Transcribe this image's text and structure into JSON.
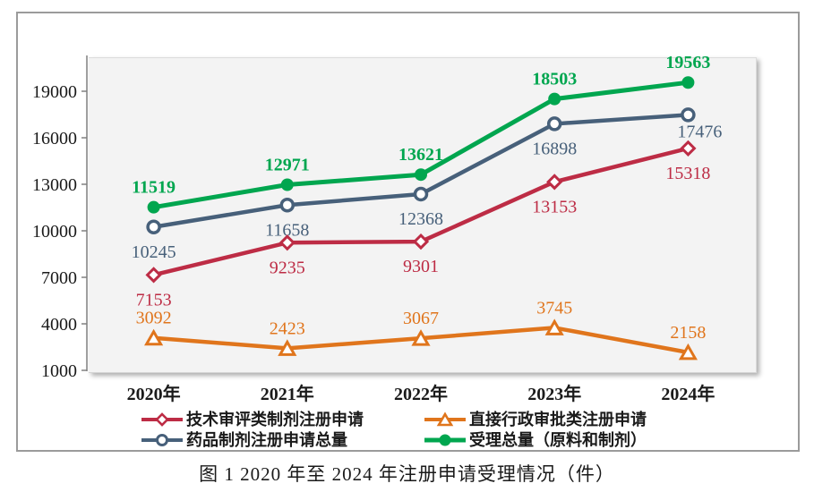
{
  "figure": {
    "caption": "图 1  2020 年至 2024 年注册申请受理情况（件）"
  },
  "chart_data": {
    "type": "line",
    "title": "",
    "xlabel": "",
    "ylabel": "",
    "categories": [
      "2020年",
      "2021年",
      "2022年",
      "2023年",
      "2024年"
    ],
    "series": [
      {
        "key": "tech-review-preparation",
        "name": "技术审评类制剂注册申请",
        "color": "#BD2C45",
        "marker": "diamond-open",
        "values": [
          7153,
          9235,
          9301,
          13153,
          15318
        ],
        "label_side": "below",
        "label_bold": false
      },
      {
        "key": "drug-preparation-total",
        "name": "药品制剂注册申请总量",
        "color": "#47607A",
        "marker": "circle-open",
        "values": [
          10245,
          11658,
          12368,
          16898,
          17476
        ],
        "label_side": "below",
        "label_bold": false,
        "label_adjust": {
          "4": [
            13,
            -9
          ]
        }
      },
      {
        "key": "direct-admin-approval",
        "name": "直接行政审批类注册申请",
        "color": "#E0751C",
        "marker": "triangle-open",
        "values": [
          3092,
          2423,
          3067,
          3745,
          2158
        ],
        "label_side": "above",
        "label_bold": false
      },
      {
        "key": "total-accepted",
        "name": "受理总量（原料和制剂）",
        "color": "#00A64F",
        "marker": "circle-filled",
        "values": [
          11519,
          12971,
          13621,
          18503,
          19563
        ],
        "label_side": "above",
        "label_bold": true
      }
    ],
    "y_axis": {
      "ticks": [
        1000,
        4000,
        7000,
        10000,
        13000,
        16000,
        19000
      ],
      "min": 1000,
      "max": 21200,
      "grid": false
    },
    "legend": {
      "position": "bottom",
      "order": [
        "tech-review-preparation",
        "direct-admin-approval",
        "drug-preparation-total",
        "total-accepted"
      ]
    },
    "axis_color": "#808080",
    "tick_label_color": "#1a1a1a"
  }
}
